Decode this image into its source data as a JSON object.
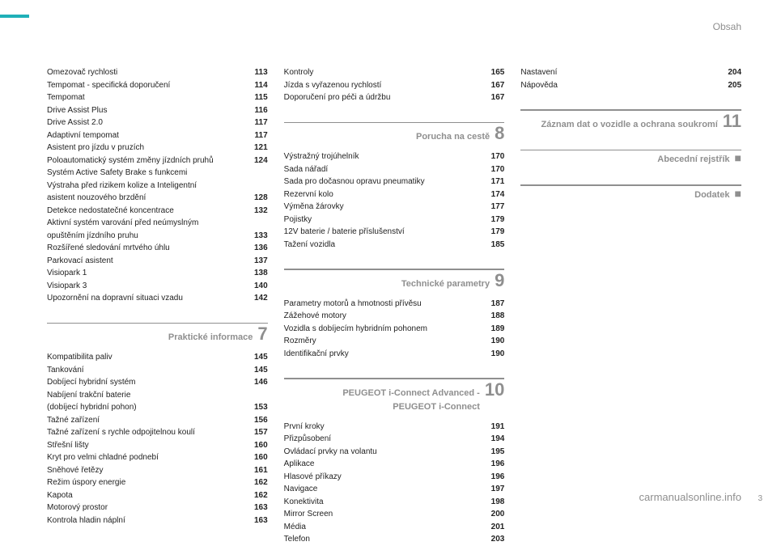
{
  "header": {
    "right": "Obsah"
  },
  "footer": {
    "watermark": "carmanualsonline.info",
    "page": "3"
  },
  "col1": {
    "items": [
      {
        "label": "Omezovač rychlosti",
        "page": "113"
      },
      {
        "label": "Tempomat - specifická doporučení",
        "page": "114"
      },
      {
        "label": "Tempomat",
        "page": "115"
      },
      {
        "label": "Drive Assist Plus",
        "page": "116"
      },
      {
        "label": "Drive Assist 2.0",
        "page": "117"
      },
      {
        "label": "Adaptivní tempomat",
        "page": "117"
      },
      {
        "label": "Asistent pro jízdu v pruzích",
        "page": "121"
      },
      {
        "label": "Poloautomatický systém změny jízdních pruhů",
        "page": "124"
      },
      {
        "label": "Systém Active Safety Brake s funkcemi",
        "page": ""
      },
      {
        "label": "Výstraha před rizikem kolize a Inteligentní",
        "page": ""
      },
      {
        "label": "asistent nouzového brzdění",
        "page": "128"
      },
      {
        "label": "Detekce nedostatečné koncentrace",
        "page": "132"
      },
      {
        "label": "Aktivní systém varování před neúmyslným",
        "page": ""
      },
      {
        "label": "opuštěním jízdního pruhu",
        "page": "133"
      },
      {
        "label": "Rozšířené sledování mrtvého úhlu",
        "page": "136"
      },
      {
        "label": "Parkovací asistent",
        "page": "137"
      },
      {
        "label": "Visiopark 1",
        "page": "138"
      },
      {
        "label": "Visiopark 3",
        "page": "140"
      },
      {
        "label": "Upozornění na dopravní situaci vzadu",
        "page": "142"
      }
    ],
    "section": {
      "title": "Praktické informace",
      "num": "7"
    },
    "items2": [
      {
        "label": "Kompatibilita paliv",
        "page": "145"
      },
      {
        "label": "Tankování",
        "page": "145"
      },
      {
        "label": "Dobíjecí hybridní systém",
        "page": "146"
      },
      {
        "label": "Nabíjení trakční baterie",
        "page": ""
      },
      {
        "label": "(dobíjecí hybridní pohon)",
        "page": "153"
      },
      {
        "label": "Tažné zařízení",
        "page": "156"
      },
      {
        "label": "Tažné zařízení s rychle odpojitelnou koulí",
        "page": "157"
      },
      {
        "label": "Střešní lišty",
        "page": "160"
      },
      {
        "label": "Kryt pro velmi chladné podnebí",
        "page": "160"
      },
      {
        "label": "Sněhové řetězy",
        "page": "161"
      },
      {
        "label": "Režim úspory energie",
        "page": "162"
      },
      {
        "label": "Kapota",
        "page": "162"
      },
      {
        "label": "Motorový prostor",
        "page": "163"
      },
      {
        "label": "Kontrola hladin náplní",
        "page": "163"
      }
    ]
  },
  "col2": {
    "items": [
      {
        "label": "Kontroly",
        "page": "165"
      },
      {
        "label": "Jízda s vyřazenou rychlostí",
        "page": "167"
      },
      {
        "label": "Doporučení pro péči a údržbu",
        "page": "167"
      }
    ],
    "section1": {
      "title": "Porucha na cestě",
      "num": "8"
    },
    "items2": [
      {
        "label": "Výstražný trojúhelník",
        "page": "170"
      },
      {
        "label": "Sada nářadí",
        "page": "170"
      },
      {
        "label": "Sada pro dočasnou opravu pneumatiky",
        "page": "171"
      },
      {
        "label": "Rezervní kolo",
        "page": "174"
      },
      {
        "label": "Výměna žárovky",
        "page": "177"
      },
      {
        "label": "Pojistky",
        "page": "179"
      },
      {
        "label": "12V baterie / baterie příslušenství",
        "page": "179"
      },
      {
        "label": "Tažení vozidla",
        "page": "185"
      }
    ],
    "section2": {
      "title": "Technické parametry",
      "num": "9"
    },
    "items3": [
      {
        "label": "Parametry motorů a hmotnosti přívěsu",
        "page": "187"
      },
      {
        "label": "Zážehové motory",
        "page": "188"
      },
      {
        "label": "Vozidla s dobíjecím hybridním pohonem",
        "page": "189"
      },
      {
        "label": "Rozměry",
        "page": "190"
      },
      {
        "label": "Identifikační prvky",
        "page": "190"
      }
    ],
    "section3": {
      "title1": "PEUGEOT i-Connect Advanced -",
      "title2": "PEUGEOT i-Connect",
      "num": "10"
    },
    "items4": [
      {
        "label": "První kroky",
        "page": "191"
      },
      {
        "label": "Přizpůsobení",
        "page": "194"
      },
      {
        "label": "Ovládací prvky na volantu",
        "page": "195"
      },
      {
        "label": "Aplikace",
        "page": "196"
      },
      {
        "label": "Hlasové příkazy",
        "page": "196"
      },
      {
        "label": "Navigace",
        "page": "197"
      },
      {
        "label": "Konektivita",
        "page": "198"
      },
      {
        "label": "Mirror Screen",
        "page": "200"
      },
      {
        "label": "Média",
        "page": "201"
      },
      {
        "label": "Telefon",
        "page": "203"
      }
    ]
  },
  "col3": {
    "items": [
      {
        "label": "Nastavení",
        "page": "204"
      },
      {
        "label": "Nápověda",
        "page": "205"
      }
    ],
    "section1": {
      "title": "Záznam dat o vozidle a ochrana soukromí",
      "num": "11"
    },
    "section2": {
      "title": "Abecední rejstřík",
      "bullet": "■"
    },
    "section3": {
      "title": "Dodatek",
      "bullet": "■"
    }
  }
}
